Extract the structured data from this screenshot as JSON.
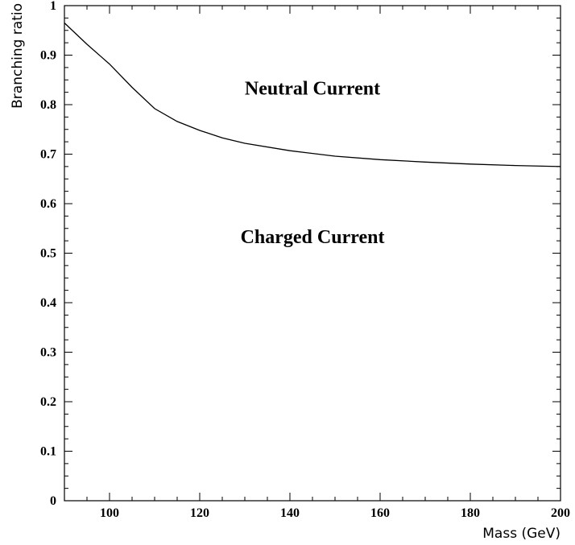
{
  "chart_data": {
    "type": "line",
    "title": "",
    "xlabel": "Mass (GeV)",
    "ylabel": "Branching ratio",
    "xlim": [
      90,
      200
    ],
    "ylim": [
      0,
      1
    ],
    "x_ticks": [
      100,
      120,
      140,
      160,
      180,
      200
    ],
    "x_tick_labels": [
      "100",
      "120",
      "140",
      "160",
      "180",
      "200"
    ],
    "y_ticks": [
      0,
      0.1,
      0.2,
      0.3,
      0.4,
      0.5,
      0.6,
      0.7,
      0.8,
      0.9,
      1
    ],
    "y_tick_labels": [
      "0",
      "0.1",
      "0.2",
      "0.3",
      "0.4",
      "0.5",
      "0.6",
      "0.7",
      "0.8",
      "0.9",
      "1"
    ],
    "grid": false,
    "series": [
      {
        "x": [
          90,
          95,
          100,
          105,
          110,
          115,
          120,
          125,
          130,
          140,
          150,
          160,
          170,
          180,
          190,
          200
        ],
        "y": [
          0.965,
          0.922,
          0.882,
          0.835,
          0.792,
          0.766,
          0.748,
          0.733,
          0.722,
          0.707,
          0.696,
          0.689,
          0.684,
          0.68,
          0.677,
          0.675
        ]
      }
    ],
    "annotations": [
      {
        "text": "Neutral Current",
        "x": 145,
        "y": 0.82
      },
      {
        "text": "Charged Current",
        "x": 145,
        "y": 0.52
      }
    ]
  }
}
